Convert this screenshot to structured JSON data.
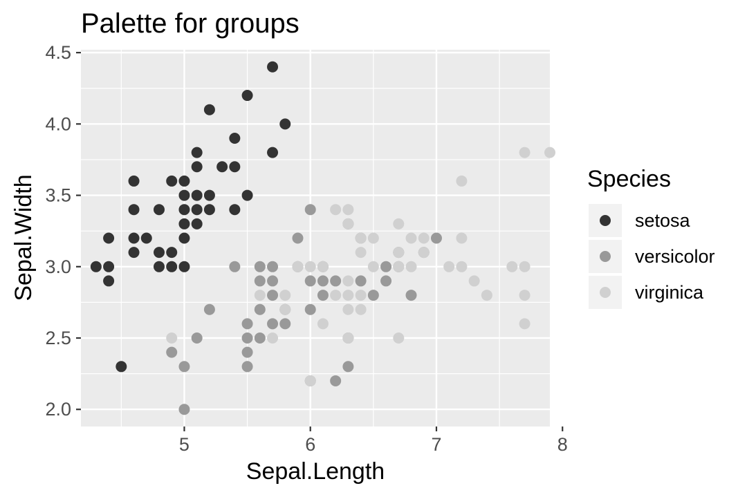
{
  "chart_data": {
    "type": "scatter",
    "title": "Palette for groups",
    "xlabel": "Sepal.Length",
    "ylabel": "Sepal.Width",
    "xlim": [
      4.18,
      7.9
    ],
    "ylim": [
      1.88,
      4.52
    ],
    "x_ticks": [
      5,
      6,
      7,
      8
    ],
    "y_ticks": [
      2.0,
      2.5,
      3.0,
      3.5,
      4.0,
      4.5
    ],
    "x_tick_labels": [
      "5",
      "6",
      "7",
      "8"
    ],
    "y_tick_labels": [
      "2.0",
      "2.5",
      "3.0",
      "3.5",
      "4.0",
      "4.5"
    ],
    "grid": true,
    "background": "#ebebeb",
    "legend": {
      "title": "Species",
      "placement": "right"
    },
    "series": [
      {
        "name": "setosa",
        "color": "#333333",
        "points": [
          [
            4.3,
            3.0
          ],
          [
            4.4,
            3.0
          ],
          [
            4.4,
            2.9
          ],
          [
            4.4,
            3.2
          ],
          [
            4.5,
            2.3
          ],
          [
            4.6,
            3.1
          ],
          [
            4.6,
            3.2
          ],
          [
            4.6,
            3.4
          ],
          [
            4.6,
            3.6
          ],
          [
            4.7,
            3.2
          ],
          [
            4.8,
            3.0
          ],
          [
            4.8,
            3.1
          ],
          [
            4.8,
            3.4
          ],
          [
            4.9,
            3.0
          ],
          [
            4.9,
            3.1
          ],
          [
            4.9,
            3.6
          ],
          [
            5.0,
            3.0
          ],
          [
            5.0,
            3.2
          ],
          [
            5.0,
            3.3
          ],
          [
            5.0,
            3.4
          ],
          [
            5.0,
            3.5
          ],
          [
            5.0,
            3.6
          ],
          [
            5.1,
            3.3
          ],
          [
            5.1,
            3.4
          ],
          [
            5.1,
            3.5
          ],
          [
            5.1,
            3.7
          ],
          [
            5.1,
            3.8
          ],
          [
            5.2,
            3.4
          ],
          [
            5.2,
            3.5
          ],
          [
            5.2,
            4.1
          ],
          [
            5.3,
            3.7
          ],
          [
            5.4,
            3.4
          ],
          [
            5.4,
            3.7
          ],
          [
            5.4,
            3.9
          ],
          [
            5.5,
            3.5
          ],
          [
            5.5,
            4.2
          ],
          [
            5.7,
            3.8
          ],
          [
            5.7,
            4.4
          ],
          [
            5.8,
            4.0
          ]
        ]
      },
      {
        "name": "versicolor",
        "color": "#999999",
        "points": [
          [
            4.9,
            2.4
          ],
          [
            5.0,
            2.0
          ],
          [
            5.0,
            2.3
          ],
          [
            5.1,
            2.5
          ],
          [
            5.2,
            2.7
          ],
          [
            5.4,
            3.0
          ],
          [
            5.5,
            2.3
          ],
          [
            5.5,
            2.4
          ],
          [
            5.5,
            2.5
          ],
          [
            5.5,
            2.6
          ],
          [
            5.6,
            2.5
          ],
          [
            5.6,
            2.7
          ],
          [
            5.6,
            2.9
          ],
          [
            5.6,
            3.0
          ],
          [
            5.7,
            2.6
          ],
          [
            5.7,
            2.8
          ],
          [
            5.7,
            2.9
          ],
          [
            5.7,
            3.0
          ],
          [
            5.8,
            2.6
          ],
          [
            5.8,
            2.7
          ],
          [
            5.9,
            3.0
          ],
          [
            5.9,
            3.2
          ],
          [
            6.0,
            2.2
          ],
          [
            6.0,
            2.7
          ],
          [
            6.0,
            2.9
          ],
          [
            6.0,
            3.4
          ],
          [
            6.1,
            2.8
          ],
          [
            6.1,
            2.9
          ],
          [
            6.1,
            3.0
          ],
          [
            6.2,
            2.2
          ],
          [
            6.2,
            2.9
          ],
          [
            6.3,
            2.3
          ],
          [
            6.3,
            2.5
          ],
          [
            6.3,
            3.3
          ],
          [
            6.4,
            2.9
          ],
          [
            6.4,
            3.2
          ],
          [
            6.5,
            2.8
          ],
          [
            6.6,
            2.9
          ],
          [
            6.6,
            3.0
          ],
          [
            6.7,
            3.0
          ],
          [
            6.7,
            3.1
          ],
          [
            6.8,
            2.8
          ],
          [
            6.9,
            3.1
          ],
          [
            7.0,
            3.2
          ]
        ]
      },
      {
        "name": "virginica",
        "color": "#d0d0d0",
        "points": [
          [
            4.9,
            2.5
          ],
          [
            5.6,
            2.8
          ],
          [
            5.7,
            2.5
          ],
          [
            5.8,
            2.7
          ],
          [
            5.8,
            2.8
          ],
          [
            5.9,
            3.0
          ],
          [
            6.0,
            2.2
          ],
          [
            6.0,
            3.0
          ],
          [
            6.1,
            2.6
          ],
          [
            6.1,
            3.0
          ],
          [
            6.2,
            2.8
          ],
          [
            6.2,
            3.4
          ],
          [
            6.3,
            2.5
          ],
          [
            6.3,
            2.7
          ],
          [
            6.3,
            2.8
          ],
          [
            6.3,
            2.9
          ],
          [
            6.3,
            3.3
          ],
          [
            6.3,
            3.4
          ],
          [
            6.4,
            2.7
          ],
          [
            6.4,
            2.8
          ],
          [
            6.4,
            3.1
          ],
          [
            6.4,
            3.2
          ],
          [
            6.5,
            3.0
          ],
          [
            6.5,
            3.2
          ],
          [
            6.7,
            2.5
          ],
          [
            6.7,
            3.0
          ],
          [
            6.7,
            3.1
          ],
          [
            6.7,
            3.3
          ],
          [
            6.8,
            3.0
          ],
          [
            6.8,
            3.2
          ],
          [
            6.9,
            3.1
          ],
          [
            6.9,
            3.2
          ],
          [
            7.1,
            3.0
          ],
          [
            7.2,
            3.0
          ],
          [
            7.2,
            3.2
          ],
          [
            7.2,
            3.6
          ],
          [
            7.3,
            2.9
          ],
          [
            7.4,
            2.8
          ],
          [
            7.6,
            3.0
          ],
          [
            7.7,
            2.6
          ],
          [
            7.7,
            2.8
          ],
          [
            7.7,
            3.0
          ],
          [
            7.7,
            3.8
          ],
          [
            7.9,
            3.8
          ]
        ]
      }
    ]
  }
}
